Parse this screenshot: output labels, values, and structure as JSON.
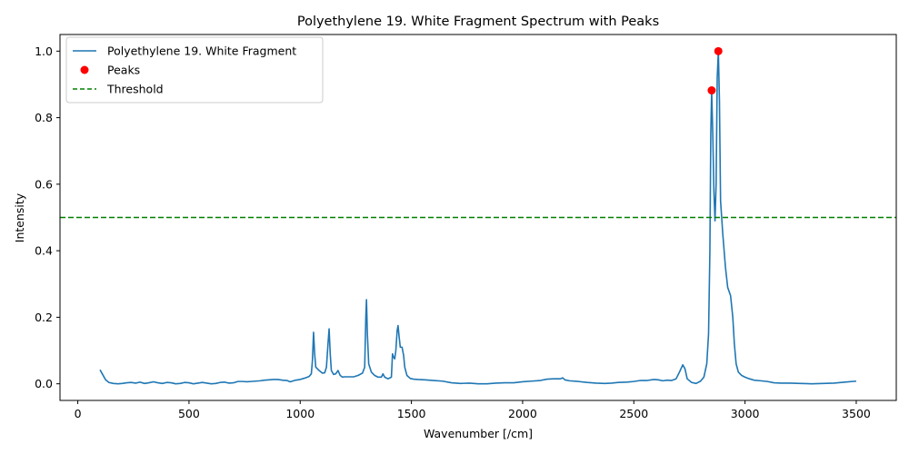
{
  "chart_data": {
    "type": "line",
    "title": "Polyethylene 19. White Fragment Spectrum with Peaks",
    "xlabel": "Wavenumber [/cm]",
    "ylabel": "Intensity",
    "xlim": [
      -80,
      3680
    ],
    "ylim": [
      -0.05,
      1.05
    ],
    "xticks": [
      0,
      500,
      1000,
      1500,
      2000,
      2500,
      3000,
      3500
    ],
    "xtick_labels": [
      "0",
      "500",
      "1000",
      "1500",
      "2000",
      "2500",
      "3000",
      "3500"
    ],
    "yticks": [
      0.0,
      0.2,
      0.4,
      0.6,
      0.8,
      1.0
    ],
    "ytick_labels": [
      "0.0",
      "0.2",
      "0.4",
      "0.6",
      "0.8",
      "1.0"
    ],
    "grid": false,
    "legend_position": "top-left",
    "series": [
      {
        "name": "Polyethylene 19. White Fragment",
        "kind": "line",
        "color": "#1f77b4",
        "points": [
          [
            100,
            0.042
          ],
          [
            110,
            0.03
          ],
          [
            125,
            0.012
          ],
          [
            140,
            0.004
          ],
          [
            160,
            0.001
          ],
          [
            180,
            0.0
          ],
          [
            200,
            0.001
          ],
          [
            220,
            0.003
          ],
          [
            240,
            0.004
          ],
          [
            260,
            0.002
          ],
          [
            280,
            0.005
          ],
          [
            300,
            0.001
          ],
          [
            320,
            0.003
          ],
          [
            340,
            0.006
          ],
          [
            360,
            0.003
          ],
          [
            380,
            0.001
          ],
          [
            400,
            0.004
          ],
          [
            420,
            0.003
          ],
          [
            440,
            0.0
          ],
          [
            460,
            0.001
          ],
          [
            480,
            0.004
          ],
          [
            500,
            0.003
          ],
          [
            520,
            0.0
          ],
          [
            540,
            0.002
          ],
          [
            560,
            0.004
          ],
          [
            580,
            0.002
          ],
          [
            600,
            0.0
          ],
          [
            620,
            0.001
          ],
          [
            640,
            0.004
          ],
          [
            660,
            0.005
          ],
          [
            680,
            0.002
          ],
          [
            700,
            0.003
          ],
          [
            720,
            0.007
          ],
          [
            740,
            0.007
          ],
          [
            760,
            0.006
          ],
          [
            780,
            0.007
          ],
          [
            800,
            0.008
          ],
          [
            820,
            0.009
          ],
          [
            840,
            0.011
          ],
          [
            860,
            0.012
          ],
          [
            880,
            0.013
          ],
          [
            900,
            0.013
          ],
          [
            920,
            0.011
          ],
          [
            940,
            0.01
          ],
          [
            955,
            0.006
          ],
          [
            965,
            0.008
          ],
          [
            980,
            0.011
          ],
          [
            1000,
            0.013
          ],
          [
            1020,
            0.017
          ],
          [
            1040,
            0.022
          ],
          [
            1050,
            0.03
          ],
          [
            1055,
            0.07
          ],
          [
            1060,
            0.155
          ],
          [
            1065,
            0.09
          ],
          [
            1070,
            0.05
          ],
          [
            1085,
            0.04
          ],
          [
            1100,
            0.032
          ],
          [
            1110,
            0.033
          ],
          [
            1118,
            0.05
          ],
          [
            1125,
            0.12
          ],
          [
            1130,
            0.165
          ],
          [
            1135,
            0.09
          ],
          [
            1140,
            0.04
          ],
          [
            1150,
            0.028
          ],
          [
            1160,
            0.03
          ],
          [
            1170,
            0.04
          ],
          [
            1180,
            0.025
          ],
          [
            1190,
            0.02
          ],
          [
            1200,
            0.021
          ],
          [
            1220,
            0.021
          ],
          [
            1240,
            0.021
          ],
          [
            1260,
            0.025
          ],
          [
            1280,
            0.032
          ],
          [
            1290,
            0.05
          ],
          [
            1295,
            0.2
          ],
          [
            1298,
            0.253
          ],
          [
            1302,
            0.15
          ],
          [
            1308,
            0.06
          ],
          [
            1320,
            0.035
          ],
          [
            1335,
            0.025
          ],
          [
            1350,
            0.02
          ],
          [
            1365,
            0.02
          ],
          [
            1372,
            0.03
          ],
          [
            1380,
            0.02
          ],
          [
            1395,
            0.015
          ],
          [
            1410,
            0.02
          ],
          [
            1415,
            0.09
          ],
          [
            1420,
            0.08
          ],
          [
            1425,
            0.075
          ],
          [
            1430,
            0.1
          ],
          [
            1436,
            0.16
          ],
          [
            1440,
            0.175
          ],
          [
            1445,
            0.14
          ],
          [
            1450,
            0.11
          ],
          [
            1458,
            0.11
          ],
          [
            1465,
            0.085
          ],
          [
            1470,
            0.05
          ],
          [
            1480,
            0.025
          ],
          [
            1495,
            0.016
          ],
          [
            1510,
            0.014
          ],
          [
            1530,
            0.013
          ],
          [
            1560,
            0.012
          ],
          [
            1600,
            0.01
          ],
          [
            1640,
            0.008
          ],
          [
            1680,
            0.003
          ],
          [
            1720,
            0.001
          ],
          [
            1760,
            0.002
          ],
          [
            1800,
            0.0
          ],
          [
            1840,
            0.0
          ],
          [
            1880,
            0.002
          ],
          [
            1920,
            0.003
          ],
          [
            1960,
            0.003
          ],
          [
            2000,
            0.006
          ],
          [
            2040,
            0.008
          ],
          [
            2080,
            0.01
          ],
          [
            2110,
            0.014
          ],
          [
            2140,
            0.015
          ],
          [
            2170,
            0.015
          ],
          [
            2180,
            0.018
          ],
          [
            2190,
            0.012
          ],
          [
            2210,
            0.009
          ],
          [
            2250,
            0.007
          ],
          [
            2290,
            0.004
          ],
          [
            2330,
            0.002
          ],
          [
            2370,
            0.001
          ],
          [
            2400,
            0.002
          ],
          [
            2430,
            0.004
          ],
          [
            2470,
            0.005
          ],
          [
            2500,
            0.007
          ],
          [
            2530,
            0.01
          ],
          [
            2560,
            0.01
          ],
          [
            2590,
            0.013
          ],
          [
            2610,
            0.012
          ],
          [
            2630,
            0.009
          ],
          [
            2650,
            0.011
          ],
          [
            2670,
            0.01
          ],
          [
            2690,
            0.015
          ],
          [
            2705,
            0.035
          ],
          [
            2720,
            0.057
          ],
          [
            2730,
            0.045
          ],
          [
            2740,
            0.015
          ],
          [
            2760,
            0.004
          ],
          [
            2780,
            0.001
          ],
          [
            2800,
            0.008
          ],
          [
            2815,
            0.02
          ],
          [
            2828,
            0.06
          ],
          [
            2836,
            0.15
          ],
          [
            2842,
            0.4
          ],
          [
            2846,
            0.75
          ],
          [
            2850,
            0.88
          ],
          [
            2855,
            0.75
          ],
          [
            2860,
            0.58
          ],
          [
            2865,
            0.49
          ],
          [
            2870,
            0.6
          ],
          [
            2875,
            0.92
          ],
          [
            2880,
            1.0
          ],
          [
            2885,
            0.85
          ],
          [
            2890,
            0.55
          ],
          [
            2900,
            0.45
          ],
          [
            2912,
            0.35
          ],
          [
            2922,
            0.29
          ],
          [
            2935,
            0.265
          ],
          [
            2945,
            0.2
          ],
          [
            2952,
            0.12
          ],
          [
            2960,
            0.06
          ],
          [
            2970,
            0.035
          ],
          [
            2985,
            0.025
          ],
          [
            3000,
            0.02
          ],
          [
            3020,
            0.015
          ],
          [
            3040,
            0.011
          ],
          [
            3070,
            0.009
          ],
          [
            3100,
            0.007
          ],
          [
            3130,
            0.003
          ],
          [
            3160,
            0.002
          ],
          [
            3200,
            0.002
          ],
          [
            3250,
            0.001
          ],
          [
            3300,
            0.0
          ],
          [
            3350,
            0.001
          ],
          [
            3400,
            0.002
          ],
          [
            3450,
            0.005
          ],
          [
            3500,
            0.008
          ]
        ]
      },
      {
        "name": "Peaks",
        "kind": "scatter",
        "color": "#ff0000",
        "points": [
          [
            2850,
            0.882
          ],
          [
            2880,
            1.0
          ]
        ]
      },
      {
        "name": "Threshold",
        "kind": "hline",
        "color": "#008000",
        "y": 0.5
      }
    ]
  }
}
